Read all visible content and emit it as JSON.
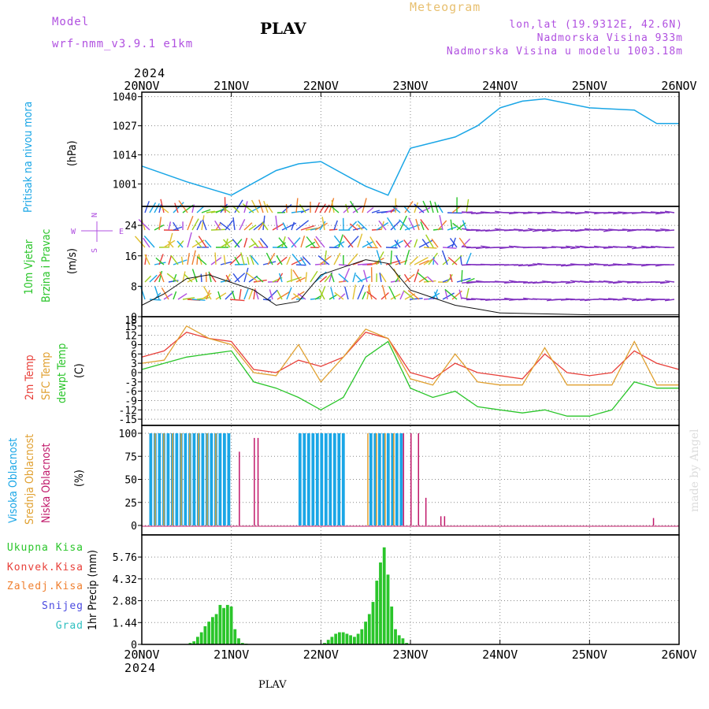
{
  "header": {
    "model_label": "Model",
    "model_name": "wrf-nmm_v3.9.1 e1km",
    "station": "PLAV",
    "meteogram": "Meteogram",
    "lonlat": "lon,lat (19.9312E, 42.6N)",
    "elev": "Nadmorska Visina 933m",
    "elev_model": "Nadmorska Visina u modelu 1003.18m",
    "year": "2024",
    "footer_station": "PLAV",
    "credit": "made by Angel"
  },
  "colors": {
    "pressure": "#1aa6e6",
    "temp2m": "#e8403a",
    "sfctemp": "#e0a030",
    "dewpt": "#2ac52a",
    "high": "#1aa6e6",
    "mid": "#e0a030",
    "low": "#c0186a",
    "rain": "#2ac52a",
    "conv": "#e8403a",
    "frozen": "#f08030",
    "snow": "#4a4ae0",
    "graupel": "#30c0c0",
    "windlbl": "#2ac52a",
    "compass": "#b050e0"
  },
  "chart_data": [
    {
      "type": "line",
      "title": "Pritisak na nivou mora",
      "ylabel": "(hPa)",
      "x": [
        "2024-11-20T00",
        "2024-11-20T12",
        "2024-11-20T18",
        "2024-11-21T00",
        "2024-11-21T12",
        "2024-11-21T18",
        "2024-11-22T00",
        "2024-11-22T12",
        "2024-11-22T18",
        "2024-11-23T00",
        "2024-11-23T12",
        "2024-11-23T18",
        "2024-11-24T00",
        "2024-11-24T06",
        "2024-11-24T12",
        "2024-11-25T00",
        "2024-11-25T12",
        "2024-11-25T18",
        "2024-11-26T00"
      ],
      "values": [
        1009,
        1002,
        999,
        996,
        1007,
        1010,
        1011,
        1000,
        996,
        1017,
        1022,
        1027,
        1035,
        1038,
        1039,
        1035,
        1034,
        1028,
        1028
      ],
      "yticks": [
        1001,
        1014,
        1027,
        1040
      ],
      "ylim": [
        991,
        1042
      ]
    },
    {
      "type": "line",
      "title": "10m Vjetar Brzina i Pravac",
      "ylabel": "(m/s)",
      "compass": [
        "N",
        "<-|->",
        "E",
        "W",
        "S"
      ],
      "yticks": [
        0,
        8,
        16,
        24
      ],
      "ylim": [
        0,
        29
      ],
      "series": [
        {
          "x": [
            "2024-11-20T00",
            "2024-11-20T06",
            "2024-11-20T12",
            "2024-11-20T18",
            "2024-11-21T00",
            "2024-11-21T06",
            "2024-11-21T12",
            "2024-11-21T18",
            "2024-11-22T00",
            "2024-11-22T06",
            "2024-11-22T12",
            "2024-11-22T18",
            "2024-11-23T00",
            "2024-11-23T06",
            "2024-11-23T12",
            "2024-11-23T18",
            "2024-11-24T00",
            "2024-11-25T00",
            "2024-11-26T00"
          ],
          "values": [
            3,
            6,
            10,
            11,
            9,
            7,
            3,
            4,
            11,
            13,
            15,
            14,
            7,
            5,
            3,
            2,
            1,
            0.5,
            0.5
          ]
        }
      ]
    },
    {
      "type": "line",
      "title": "2m Temp / SFC Temp / dewpt Temp",
      "ylabel": "(C)",
      "yticks": [
        -15,
        -12,
        -9,
        -6,
        -3,
        0,
        3,
        6,
        9,
        12,
        15,
        18
      ],
      "ylim": [
        -17,
        18
      ],
      "series": [
        {
          "name": "2m Temp",
          "x": [
            "2024-11-20T00",
            "2024-11-20T06",
            "2024-11-20T12",
            "2024-11-20T18",
            "2024-11-21T00",
            "2024-11-21T06",
            "2024-11-21T12",
            "2024-11-21T18",
            "2024-11-22T00",
            "2024-11-22T06",
            "2024-11-22T12",
            "2024-11-22T18",
            "2024-11-23T00",
            "2024-11-23T06",
            "2024-11-23T12",
            "2024-11-23T18",
            "2024-11-24T00",
            "2024-11-24T06",
            "2024-11-24T12",
            "2024-11-24T18",
            "2024-11-25T00",
            "2024-11-25T06",
            "2024-11-25T12",
            "2024-11-25T18",
            "2024-11-26T00"
          ],
          "values": [
            5,
            7,
            13,
            11,
            10,
            1,
            0,
            4,
            2,
            5,
            13,
            11,
            0,
            -2,
            3,
            0,
            -1,
            -2,
            6,
            0,
            -1,
            0,
            7,
            3,
            1
          ]
        },
        {
          "name": "SFC Temp",
          "x": [
            "2024-11-20T00",
            "2024-11-20T06",
            "2024-11-20T12",
            "2024-11-20T18",
            "2024-11-21T00",
            "2024-11-21T06",
            "2024-11-21T12",
            "2024-11-21T18",
            "2024-11-22T00",
            "2024-11-22T06",
            "2024-11-22T12",
            "2024-11-22T18",
            "2024-11-23T00",
            "2024-11-23T06",
            "2024-11-23T12",
            "2024-11-23T18",
            "2024-11-24T00",
            "2024-11-24T06",
            "2024-11-24T12",
            "2024-11-24T18",
            "2024-11-25T00",
            "2024-11-25T06",
            "2024-11-25T12",
            "2024-11-25T18",
            "2024-11-26T00"
          ],
          "values": [
            3,
            4,
            15,
            11,
            9,
            0,
            -1,
            9,
            -3,
            5,
            14,
            11,
            -2,
            -4,
            6,
            -3,
            -4,
            -4,
            8,
            -4,
            -4,
            -4,
            10,
            -4,
            -4
          ]
        },
        {
          "name": "dewpt Temp",
          "x": [
            "2024-11-20T00",
            "2024-11-20T06",
            "2024-11-20T12",
            "2024-11-20T18",
            "2024-11-21T00",
            "2024-11-21T06",
            "2024-11-21T12",
            "2024-11-21T18",
            "2024-11-22T00",
            "2024-11-22T06",
            "2024-11-22T12",
            "2024-11-22T18",
            "2024-11-23T00",
            "2024-11-23T06",
            "2024-11-23T12",
            "2024-11-23T18",
            "2024-11-24T00",
            "2024-11-24T06",
            "2024-11-24T12",
            "2024-11-24T18",
            "2024-11-25T00",
            "2024-11-25T06",
            "2024-11-25T12",
            "2024-11-25T18",
            "2024-11-26T00"
          ],
          "values": [
            1,
            3,
            5,
            6,
            7,
            -3,
            -5,
            -8,
            -12,
            -8,
            5,
            10,
            -5,
            -8,
            -6,
            -11,
            -12,
            -13,
            -12,
            -14,
            -14,
            -12,
            -3,
            -5,
            -5
          ]
        }
      ]
    },
    {
      "type": "bar",
      "title": "Visoka Oblacnost / Srednja Oblacnost / Niska Oblacnost",
      "ylabel": "(%)",
      "yticks": [
        0,
        25,
        50,
        75,
        100
      ],
      "ylim": [
        0,
        100
      ],
      "series": [
        {
          "name": "Visoka Oblacnost",
          "start": [
            "2024-11-20T02",
            "2024-11-21T18",
            "2024-11-22T13"
          ],
          "end": [
            "2024-11-21T00",
            "2024-11-22T06",
            "2024-11-22T22"
          ],
          "values": [
            100,
            100,
            100
          ]
        },
        {
          "name": "Srednja Oblacnost",
          "start": [
            "2024-11-20T03",
            "2024-11-22T12"
          ],
          "end": [
            "2024-11-20T22",
            "2024-11-22T20"
          ],
          "values": [
            100,
            100
          ]
        },
        {
          "name": "Niska Oblacnost",
          "x": [
            "2024-11-21T02",
            "2024-11-21T06",
            "2024-11-21T07",
            "2024-11-22T22",
            "2024-11-23T00",
            "2024-11-23T02",
            "2024-11-23T04",
            "2024-11-23T08",
            "2024-11-23T09",
            "2024-11-25T17"
          ],
          "values": [
            80,
            95,
            95,
            100,
            100,
            100,
            30,
            10,
            10,
            8
          ]
        }
      ]
    },
    {
      "type": "bar",
      "title": "1hr Precip",
      "ylabel": "(mm)",
      "legend": [
        "Ukupna Kisa",
        "Konvek.Kisa",
        "Zaledj.Kisa",
        "Snijeg",
        "Grad"
      ],
      "yticks": [
        0,
        1.44,
        2.88,
        4.32,
        5.76
      ],
      "ylim": [
        0,
        6.7
      ],
      "x": [
        "2024-11-20T13",
        "2024-11-20T14",
        "2024-11-20T15",
        "2024-11-20T16",
        "2024-11-20T17",
        "2024-11-20T18",
        "2024-11-20T19",
        "2024-11-20T20",
        "2024-11-20T21",
        "2024-11-20T22",
        "2024-11-20T23",
        "2024-11-21T00",
        "2024-11-21T01",
        "2024-11-21T02",
        "2024-11-21T03",
        "2024-11-21T04",
        "2024-11-22T01",
        "2024-11-22T02",
        "2024-11-22T03",
        "2024-11-22T04",
        "2024-11-22T05",
        "2024-11-22T06",
        "2024-11-22T07",
        "2024-11-22T08",
        "2024-11-22T09",
        "2024-11-22T10",
        "2024-11-22T11",
        "2024-11-22T12",
        "2024-11-22T13",
        "2024-11-22T14",
        "2024-11-22T15",
        "2024-11-22T16",
        "2024-11-22T17",
        "2024-11-22T18",
        "2024-11-22T19",
        "2024-11-22T20",
        "2024-11-22T21",
        "2024-11-22T22",
        "2024-11-22T23"
      ],
      "values": [
        0.1,
        0.2,
        0.5,
        0.8,
        1.2,
        1.5,
        1.8,
        2.0,
        2.6,
        2.4,
        2.6,
        2.5,
        1.0,
        0.4,
        0.1,
        0.05,
        0.1,
        0.3,
        0.5,
        0.7,
        0.8,
        0.8,
        0.7,
        0.6,
        0.5,
        0.7,
        1.0,
        1.5,
        2.0,
        2.8,
        4.2,
        5.4,
        6.4,
        4.6,
        2.5,
        1.0,
        0.6,
        0.4,
        0.1
      ]
    }
  ]
}
